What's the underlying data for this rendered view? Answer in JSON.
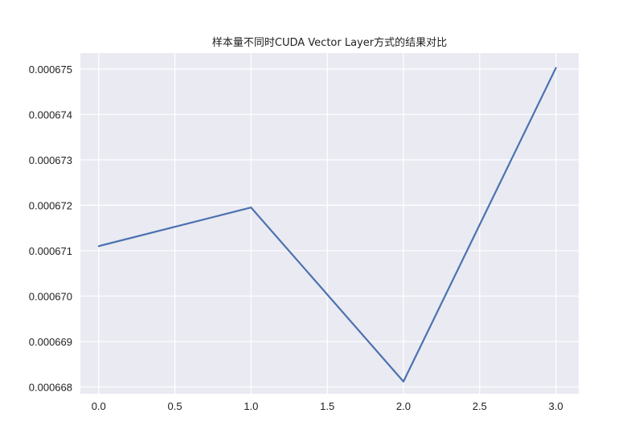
{
  "chart_data": {
    "type": "line",
    "title": "样本量不同时CUDA Vector Layer方式的结果对比",
    "xlabel": "",
    "ylabel": "",
    "x": [
      0,
      1,
      2,
      3
    ],
    "series": [
      {
        "name": "",
        "color": "#4c72b0",
        "values": [
          0.0006711,
          0.00067195,
          0.00066812,
          0.00067502
        ]
      }
    ],
    "xlim": [
      -0.12,
      3.15
    ],
    "ylim": [
      0.00066785,
      0.00067535
    ],
    "xticks": [
      0.0,
      0.5,
      1.0,
      1.5,
      2.0,
      2.5,
      3.0
    ],
    "xtick_labels": [
      "0.0",
      "0.5",
      "1.0",
      "1.5",
      "2.0",
      "2.5",
      "3.0"
    ],
    "yticks": [
      0.000668,
      0.000669,
      0.00067,
      0.000671,
      0.000672,
      0.000673,
      0.000674,
      0.000675
    ],
    "ytick_labels": [
      "0.000668",
      "0.000669",
      "0.000670",
      "0.000671",
      "0.000672",
      "0.000673",
      "0.000674",
      "0.000675"
    ],
    "grid": true,
    "background": "#eaeaf2",
    "grid_color": "#ffffff"
  }
}
